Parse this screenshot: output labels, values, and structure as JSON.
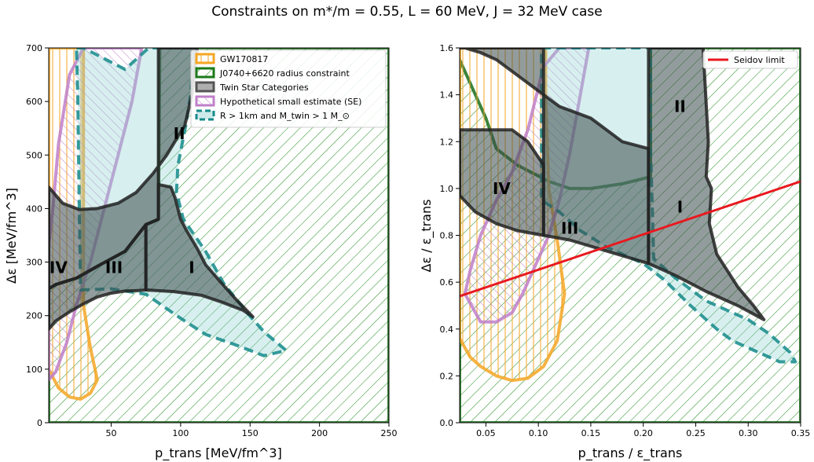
{
  "figure": {
    "title": "Constraints on m*/m = 0.55, L = 60 MeV, J = 32 MeV case"
  },
  "chart_data": [
    {
      "type": "area",
      "xlabel": "p_trans [MeV/fm^3]",
      "ylabel": "Δε [MeV/fm^3]",
      "xlim": [
        5,
        250
      ],
      "ylim": [
        0,
        700
      ],
      "xticks": [
        "50",
        "100",
        "150",
        "200",
        "250"
      ],
      "yticks": [
        "0",
        "100",
        "200",
        "300",
        "400",
        "500",
        "600",
        "700"
      ],
      "grid": false,
      "legend_position": "top-right",
      "legend": [
        {
          "label": "GW170817",
          "color": "#f5a623",
          "style": "vertical hatch"
        },
        {
          "label": "J0740+6620 radius constraint",
          "color": "#1b7a1b",
          "style": "diagonal hatch"
        },
        {
          "label": "Twin Star Categories",
          "color": "#808080",
          "style": "filled"
        },
        {
          "label": "Hypothetical small estimate (SE)",
          "color": "#bf7fc9",
          "style": "diagonal hatch"
        },
        {
          "label": "R > 1km and M_twin > 1 M_⊙",
          "color": "#148a8a",
          "style": "dashed outline"
        }
      ],
      "category_labels": [
        {
          "text": "I",
          "x": 108,
          "y": 290
        },
        {
          "text": "II",
          "x": 99,
          "y": 540
        },
        {
          "text": "III",
          "x": 52,
          "y": 290
        },
        {
          "text": "IV",
          "x": 12,
          "y": 290
        }
      ],
      "series": [
        {
          "name": "Twin Star Categories",
          "points": [
            [
              5,
              440
            ],
            [
              15,
              410
            ],
            [
              27,
              398
            ],
            [
              40,
              400
            ],
            [
              55,
              410
            ],
            [
              68,
              430
            ],
            [
              80,
              465
            ],
            [
              90,
              500
            ],
            [
              97,
              530
            ],
            [
              103,
              555
            ],
            [
              108,
              610
            ],
            [
              112,
              700
            ],
            [
              84,
              700
            ],
            [
              84,
              380
            ],
            [
              75,
              370
            ],
            [
              60,
              320
            ],
            [
              42,
              295
            ],
            [
              25,
              270
            ],
            [
              10,
              258
            ],
            [
              5,
              250
            ]
          ]
        },
        {
          "name": "Twin Star Categories",
          "points": [
            [
              5,
              250
            ],
            [
              10,
              258
            ],
            [
              25,
              270
            ],
            [
              42,
              295
            ],
            [
              60,
              320
            ],
            [
              75,
              370
            ],
            [
              75,
              248
            ],
            [
              70,
              247
            ],
            [
              60,
              246
            ],
            [
              50,
              242
            ],
            [
              40,
              235
            ],
            [
              30,
              222
            ],
            [
              20,
              207
            ],
            [
              10,
              190
            ],
            [
              5,
              175
            ]
          ]
        },
        {
          "name": "Twin Star Categories",
          "points": [
            [
              75,
              248
            ],
            [
              95,
              245
            ],
            [
              115,
              238
            ],
            [
              130,
              225
            ],
            [
              145,
              210
            ],
            [
              152,
              198
            ],
            [
              140,
              230
            ],
            [
              128,
              265
            ],
            [
              118,
              295
            ],
            [
              112,
              325
            ],
            [
              104,
              360
            ],
            [
              100,
              380
            ],
            [
              96,
              420
            ],
            [
              93,
              440
            ],
            [
              84,
              445
            ],
            [
              84,
              380
            ],
            [
              75,
              370
            ]
          ]
        },
        {
          "name": "J0740+6620 radius constraint",
          "points": [
            [
              5,
              0
            ],
            [
              250,
              0
            ],
            [
              250,
              700
            ],
            [
              85,
              700
            ],
            [
              84,
              380
            ],
            [
              75,
              370
            ],
            [
              60,
              320
            ],
            [
              42,
              295
            ],
            [
              25,
              270
            ],
            [
              10,
              258
            ],
            [
              5,
              250
            ]
          ]
        },
        {
          "name": "GW170817",
          "points": [
            [
              5,
              700
            ],
            [
              30,
              700
            ],
            [
              30,
              220
            ],
            [
              35,
              140
            ],
            [
              40,
              80
            ],
            [
              35,
              55
            ],
            [
              28,
              44
            ],
            [
              20,
              48
            ],
            [
              12,
              65
            ],
            [
              5,
              100
            ]
          ]
        },
        {
          "name": "Hypothetical small estimate (SE)",
          "points": [
            [
              5,
              80
            ],
            [
              10,
              95
            ],
            [
              18,
              150
            ],
            [
              25,
              220
            ],
            [
              35,
              300
            ],
            [
              45,
              400
            ],
            [
              55,
              500
            ],
            [
              65,
              600
            ],
            [
              72,
              700
            ],
            [
              30,
              700
            ],
            [
              20,
              650
            ],
            [
              12,
              520
            ],
            [
              8,
              400
            ],
            [
              5,
              330
            ]
          ]
        },
        {
          "name": "R > 1km and M_twin > 1 M_⊙",
          "points": [
            [
              25,
              700
            ],
            [
              30,
              700
            ],
            [
              60,
              660
            ],
            [
              77,
              700
            ],
            [
              110,
              700
            ],
            [
              107,
              610
            ],
            [
              104,
              560
            ],
            [
              98,
              480
            ],
            [
              97,
              430
            ],
            [
              102,
              380
            ],
            [
              118,
              320
            ],
            [
              131,
              260
            ],
            [
              148,
              205
            ],
            [
              160,
              170
            ],
            [
              176,
              135
            ],
            [
              160,
              125
            ],
            [
              140,
              145
            ],
            [
              118,
              165
            ],
            [
              100,
              195
            ],
            [
              75,
              240
            ],
            [
              50,
              250
            ],
            [
              28,
              248
            ],
            [
              27,
              400
            ],
            [
              26,
              600
            ]
          ]
        }
      ]
    },
    {
      "type": "area",
      "xlabel": "p_trans / ε_trans",
      "ylabel": "Δε / ε_trans",
      "xlim": [
        0.025,
        0.35
      ],
      "ylim": [
        0,
        1.6
      ],
      "xticks": [
        "0.05",
        "0.10",
        "0.15",
        "0.20",
        "0.25",
        "0.30",
        "0.35"
      ],
      "yticks": [
        "0.0",
        "0.2",
        "0.4",
        "0.6",
        "0.8",
        "1.0",
        "1.2",
        "1.4",
        "1.6"
      ],
      "grid": false,
      "legend_position": "top-right",
      "legend": [
        {
          "label": "Seidov limit",
          "color": "#e8191f",
          "style": "line"
        }
      ],
      "category_labels": [
        {
          "text": "I",
          "x": 0.235,
          "y": 0.92
        },
        {
          "text": "II",
          "x": 0.235,
          "y": 1.35
        },
        {
          "text": "III",
          "x": 0.13,
          "y": 0.83
        },
        {
          "text": "IV",
          "x": 0.065,
          "y": 1.0
        }
      ],
      "seidov_limit": {
        "x": [
          0.025,
          0.35
        ],
        "y": [
          0.54,
          1.03
        ]
      },
      "series": [
        {
          "name": "Twin Star Categories",
          "points": [
            [
              0.025,
              1.6
            ],
            [
              0.105,
              1.6
            ],
            [
              0.105,
              1.4
            ],
            [
              0.09,
              1.45
            ],
            [
              0.075,
              1.5
            ],
            [
              0.06,
              1.55
            ],
            [
              0.045,
              1.58
            ],
            [
              0.03,
              1.6
            ]
          ]
        },
        {
          "name": "Twin Star Categories",
          "points": [
            [
              0.025,
              0.97
            ],
            [
              0.04,
              0.9
            ],
            [
              0.06,
              0.85
            ],
            [
              0.08,
              0.82
            ],
            [
              0.105,
              0.8
            ],
            [
              0.105,
              1.1
            ],
            [
              0.09,
              1.2
            ],
            [
              0.075,
              1.25
            ],
            [
              0.025,
              1.25
            ]
          ]
        },
        {
          "name": "Twin Star Categories",
          "points": [
            [
              0.105,
              0.8
            ],
            [
              0.13,
              0.78
            ],
            [
              0.16,
              0.74
            ],
            [
              0.205,
              0.68
            ],
            [
              0.205,
              1.17
            ],
            [
              0.18,
              1.2
            ],
            [
              0.15,
              1.3
            ],
            [
              0.12,
              1.35
            ],
            [
              0.105,
              1.4
            ]
          ]
        },
        {
          "name": "Twin Star Categories",
          "points": [
            [
              0.205,
              0.68
            ],
            [
              0.23,
              0.63
            ],
            [
              0.26,
              0.56
            ],
            [
              0.29,
              0.5
            ],
            [
              0.315,
              0.44
            ],
            [
              0.305,
              0.5
            ],
            [
              0.29,
              0.58
            ],
            [
              0.27,
              0.72
            ],
            [
              0.263,
              0.85
            ],
            [
              0.265,
              1.0
            ],
            [
              0.26,
              1.05
            ],
            [
              0.262,
              1.2
            ],
            [
              0.257,
              1.6
            ],
            [
              0.205,
              1.6
            ]
          ]
        },
        {
          "name": "J0740+6620 radius constraint",
          "points": [
            [
              0.025,
              0
            ],
            [
              0.35,
              0
            ],
            [
              0.35,
              1.6
            ],
            [
              0.207,
              1.6
            ],
            [
              0.207,
              1.05
            ],
            [
              0.18,
              1.02
            ],
            [
              0.15,
              1.0
            ],
            [
              0.13,
              1.0
            ],
            [
              0.11,
              1.03
            ],
            [
              0.08,
              1.1
            ],
            [
              0.06,
              1.17
            ],
            [
              0.05,
              1.3
            ],
            [
              0.04,
              1.4
            ],
            [
              0.03,
              1.5
            ],
            [
              0.025,
              1.55
            ]
          ]
        },
        {
          "name": "GW170817",
          "points": [
            [
              0.025,
              1.6
            ],
            [
              0.107,
              1.6
            ],
            [
              0.107,
              1.4
            ],
            [
              0.11,
              1.0
            ],
            [
              0.118,
              0.78
            ],
            [
              0.125,
              0.55
            ],
            [
              0.118,
              0.35
            ],
            [
              0.105,
              0.24
            ],
            [
              0.09,
              0.19
            ],
            [
              0.075,
              0.18
            ],
            [
              0.06,
              0.2
            ],
            [
              0.045,
              0.24
            ],
            [
              0.035,
              0.28
            ],
            [
              0.025,
              0.36
            ]
          ]
        },
        {
          "name": "Hypothetical small estimate (SE)",
          "points": [
            [
              0.045,
              0.43
            ],
            [
              0.06,
              0.43
            ],
            [
              0.075,
              0.47
            ],
            [
              0.085,
              0.55
            ],
            [
              0.1,
              0.7
            ],
            [
              0.11,
              0.8
            ],
            [
              0.12,
              0.95
            ],
            [
              0.13,
              1.15
            ],
            [
              0.14,
              1.4
            ],
            [
              0.148,
              1.6
            ],
            [
              0.12,
              1.6
            ],
            [
              0.105,
              1.52
            ],
            [
              0.09,
              1.25
            ],
            [
              0.075,
              1.07
            ],
            [
              0.06,
              0.95
            ],
            [
              0.045,
              0.8
            ],
            [
              0.035,
              0.65
            ],
            [
              0.03,
              0.55
            ]
          ]
        },
        {
          "name": "R > 1km and M_twin > 1 M_⊙",
          "points": [
            [
              0.103,
              1.6
            ],
            [
              0.207,
              1.6
            ],
            [
              0.207,
              1.17
            ],
            [
              0.21,
              0.7
            ],
            [
              0.23,
              0.62
            ],
            [
              0.26,
              0.52
            ],
            [
              0.3,
              0.44
            ],
            [
              0.32,
              0.38
            ],
            [
              0.34,
              0.3
            ],
            [
              0.345,
              0.26
            ],
            [
              0.33,
              0.26
            ],
            [
              0.31,
              0.3
            ],
            [
              0.285,
              0.35
            ],
            [
              0.27,
              0.4
            ],
            [
              0.245,
              0.5
            ],
            [
              0.22,
              0.61
            ],
            [
              0.2,
              0.68
            ],
            [
              0.165,
              0.75
            ],
            [
              0.14,
              0.82
            ],
            [
              0.12,
              0.9
            ],
            [
              0.103,
              0.95
            ]
          ]
        }
      ]
    }
  ]
}
